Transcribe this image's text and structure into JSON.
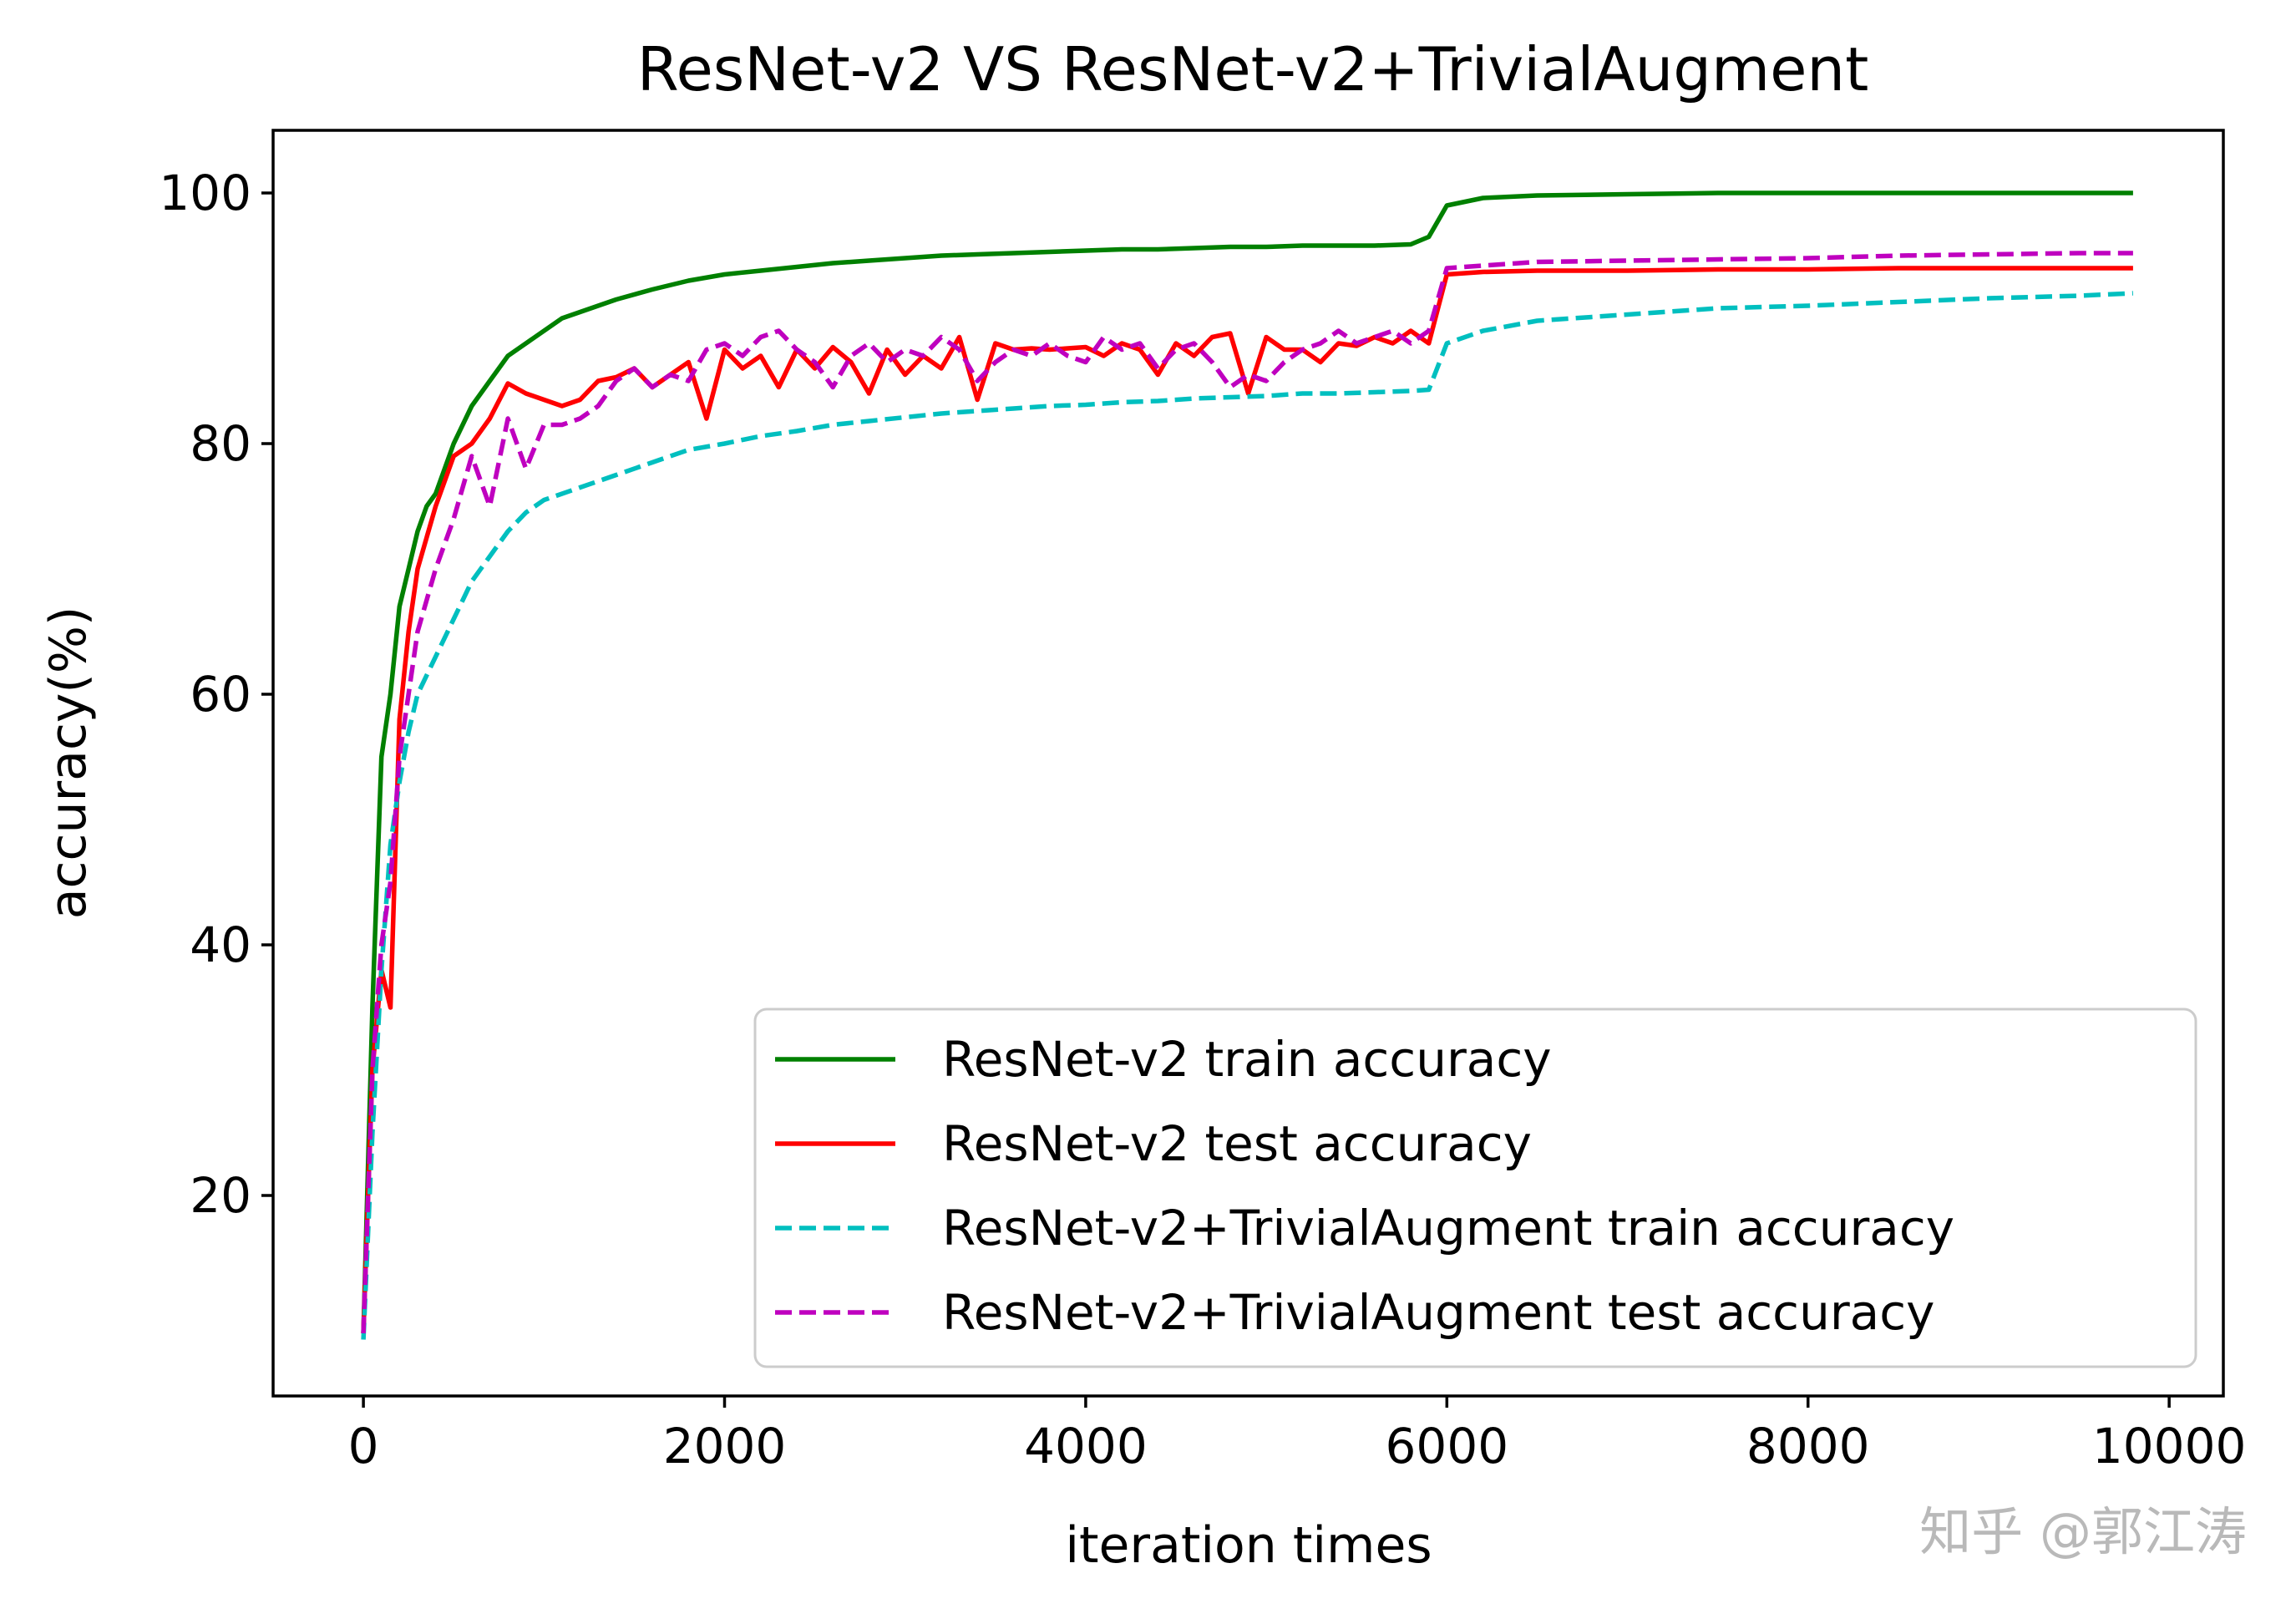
{
  "chart_data": {
    "type": "line",
    "title": "ResNet-v2 VS ResNet-v2+TrivialAugment",
    "xlabel": "iteration times",
    "ylabel": "accuracy(%)",
    "xlim": [
      -500,
      10300
    ],
    "ylim": [
      4,
      105
    ],
    "xticks": [
      0,
      2000,
      4000,
      6000,
      8000,
      10000
    ],
    "yticks": [
      20,
      40,
      60,
      80,
      100
    ],
    "grid": false,
    "legend_position": "lower-right",
    "series": [
      {
        "name": "ResNet-v2 train accuracy",
        "color": "#008000",
        "dash": "solid",
        "x": [
          0,
          50,
          100,
          150,
          200,
          250,
          300,
          350,
          400,
          450,
          500,
          600,
          700,
          800,
          900,
          1000,
          1100,
          1200,
          1400,
          1600,
          1800,
          2000,
          2200,
          2400,
          2600,
          2800,
          3000,
          3200,
          3400,
          3600,
          3800,
          4000,
          4200,
          4400,
          4600,
          4800,
          5000,
          5200,
          5400,
          5600,
          5800,
          5900,
          6000,
          6200,
          6500,
          7000,
          7500,
          8000,
          8500,
          9000,
          9500,
          9800
        ],
        "y": [
          9,
          35,
          55,
          60,
          67,
          70,
          73,
          75,
          76,
          78,
          80,
          83,
          85,
          87,
          88,
          89,
          90,
          90.5,
          91.5,
          92.3,
          93,
          93.5,
          93.8,
          94.1,
          94.4,
          94.6,
          94.8,
          95.0,
          95.1,
          95.2,
          95.3,
          95.4,
          95.5,
          95.5,
          95.6,
          95.7,
          95.7,
          95.8,
          95.8,
          95.8,
          95.9,
          96.5,
          99,
          99.6,
          99.8,
          99.9,
          100,
          100,
          100,
          100,
          100,
          100
        ]
      },
      {
        "name": "ResNet-v2 test accuracy",
        "color": "#ff0000",
        "dash": "solid",
        "x": [
          0,
          50,
          100,
          150,
          200,
          250,
          300,
          400,
          500,
          600,
          700,
          800,
          900,
          1000,
          1100,
          1200,
          1300,
          1400,
          1500,
          1600,
          1700,
          1800,
          1900,
          2000,
          2100,
          2200,
          2300,
          2400,
          2500,
          2600,
          2700,
          2800,
          2900,
          3000,
          3100,
          3200,
          3300,
          3400,
          3500,
          3600,
          3700,
          3800,
          3900,
          4000,
          4100,
          4200,
          4300,
          4400,
          4500,
          4600,
          4700,
          4800,
          4900,
          5000,
          5100,
          5200,
          5300,
          5400,
          5500,
          5600,
          5700,
          5800,
          5900,
          6000,
          6200,
          6500,
          7000,
          7500,
          8000,
          8500,
          9000,
          9500,
          9800
        ],
        "y": [
          9,
          30,
          38,
          35,
          58,
          65,
          70,
          75,
          79,
          80,
          82,
          84.8,
          84,
          83.5,
          83,
          83.5,
          85,
          85.3,
          86,
          84.5,
          85.5,
          86.5,
          82,
          87.5,
          86,
          87,
          84.5,
          87.5,
          86,
          87.7,
          86.5,
          84,
          87.5,
          85.5,
          87,
          86,
          88.5,
          83.5,
          88,
          87.5,
          87.6,
          87.5,
          87.6,
          87.7,
          87,
          88,
          87.5,
          85.5,
          88,
          87,
          88.5,
          88.8,
          84,
          88.5,
          87.5,
          87.5,
          86.5,
          88,
          87.8,
          88.5,
          88,
          89,
          88,
          93.5,
          93.7,
          93.8,
          93.8,
          93.9,
          93.9,
          94,
          94,
          94,
          94
        ]
      },
      {
        "name": "ResNet-v2+TrivialAugment train accuracy",
        "color": "#00bfbf",
        "dash": "dashed",
        "x": [
          0,
          50,
          100,
          150,
          200,
          250,
          300,
          400,
          500,
          600,
          700,
          800,
          900,
          1000,
          1200,
          1400,
          1600,
          1800,
          2000,
          2200,
          2400,
          2600,
          2800,
          3000,
          3200,
          3400,
          3600,
          3800,
          4000,
          4200,
          4400,
          4600,
          4800,
          5000,
          5200,
          5400,
          5600,
          5800,
          5900,
          6000,
          6200,
          6500,
          7000,
          7500,
          8000,
          8500,
          9000,
          9500,
          9800
        ],
        "y": [
          8.5,
          25,
          38,
          48,
          53,
          57,
          60,
          63,
          66,
          69,
          71,
          73,
          74.5,
          75.5,
          76.5,
          77.5,
          78.5,
          79.5,
          80,
          80.6,
          81,
          81.5,
          81.8,
          82.1,
          82.4,
          82.6,
          82.8,
          83,
          83.1,
          83.3,
          83.4,
          83.6,
          83.7,
          83.8,
          84,
          84,
          84.1,
          84.2,
          84.3,
          88,
          89,
          89.8,
          90.3,
          90.8,
          91,
          91.3,
          91.6,
          91.8,
          92
        ]
      },
      {
        "name": "ResNet-v2+TrivialAugment test accuracy",
        "color": "#bf00bf",
        "dash": "dashed",
        "x": [
          0,
          50,
          100,
          150,
          200,
          300,
          400,
          500,
          600,
          700,
          800,
          900,
          1000,
          1100,
          1200,
          1300,
          1400,
          1500,
          1600,
          1700,
          1800,
          1900,
          2000,
          2100,
          2200,
          2300,
          2400,
          2500,
          2600,
          2700,
          2800,
          2900,
          3000,
          3100,
          3200,
          3300,
          3400,
          3500,
          3600,
          3700,
          3800,
          3900,
          4000,
          4100,
          4200,
          4300,
          4400,
          4500,
          4600,
          4700,
          4800,
          4900,
          5000,
          5100,
          5200,
          5300,
          5400,
          5500,
          5600,
          5700,
          5800,
          5900,
          6000,
          6200,
          6500,
          7000,
          7500,
          8000,
          8500,
          9000,
          9500,
          9800
        ],
        "y": [
          9,
          30,
          40,
          45,
          55,
          65,
          70,
          74,
          79,
          75,
          82,
          78,
          81.5,
          81.5,
          82,
          83,
          85,
          86,
          84.5,
          85.5,
          85,
          87.5,
          88,
          87,
          88.5,
          89,
          87.5,
          86.5,
          84.5,
          87,
          88,
          86.5,
          87.5,
          87,
          88.5,
          87.5,
          85,
          86.5,
          87.5,
          87,
          88,
          87,
          86.5,
          88.5,
          87.5,
          88,
          86,
          87.5,
          88,
          86.5,
          84.5,
          85.5,
          85,
          86.5,
          87.5,
          88,
          89,
          88,
          88.5,
          89,
          88,
          89,
          94,
          94.2,
          94.5,
          94.6,
          94.7,
          94.8,
          95,
          95.1,
          95.2,
          95.2
        ]
      }
    ]
  },
  "watermark": "知乎 @郭江涛"
}
